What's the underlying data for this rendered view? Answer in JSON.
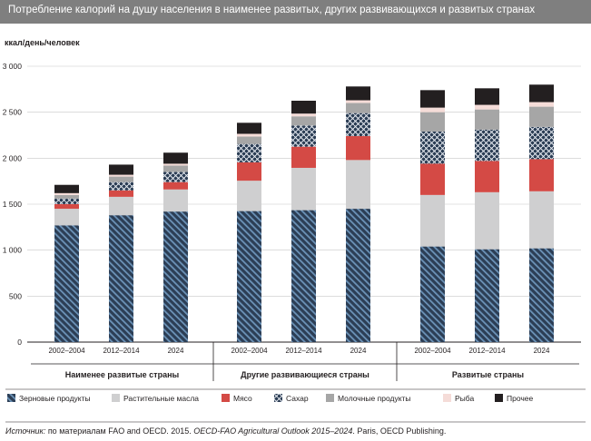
{
  "title": "Потребление калорий на душу населения в наименее развитых, других развивающихся и развитых странах",
  "source": {
    "lead": "Источник:",
    "text": " по материалам FAO and OECD. 2015. ",
    "publication": "OECD-FAO Agricultural Outlook 2015–2024",
    "tail": ". Paris, OECD Publishing."
  },
  "colors": {
    "cereals": "#2c3e55",
    "cereals_stripe": "#6c93b8",
    "oils": "#cfcfd0",
    "meat": "#d44a45",
    "sugar": "#2c3e55",
    "sugar_pattern": "#e8ecf2",
    "dairy": "#a6a6a6",
    "fish": "#f5dcd8",
    "other": "#231f20"
  },
  "chart_data": {
    "type": "bar",
    "stacked": true,
    "ylabel": "ккал/день/человек",
    "ylim": [
      0,
      3000
    ],
    "yticks": [
      0,
      500,
      1000,
      1500,
      2000,
      2500,
      3000
    ],
    "ytick_labels": [
      "0",
      "500",
      "1 000",
      "1 500",
      "2 000",
      "2 500",
      "3 000"
    ],
    "grid": true,
    "legend_position": "bottom",
    "groups": [
      {
        "label": "Наименее развитые страны",
        "categories": [
          "2002–2004",
          "2012–2014",
          "2024"
        ]
      },
      {
        "label": "Другие развивающиеся страны",
        "categories": [
          "2002–2004",
          "2012–2014",
          "2024"
        ]
      },
      {
        "label": "Развитые страны",
        "categories": [
          "2002–2004",
          "2012–2014",
          "2024"
        ]
      }
    ],
    "series": [
      {
        "name": "Зерновые продукты",
        "key": "cereals",
        "values": [
          1270,
          1380,
          1420,
          1425,
          1435,
          1450,
          1040,
          1010,
          1020
        ]
      },
      {
        "name": "Растительные масла",
        "key": "oils",
        "values": [
          180,
          200,
          240,
          330,
          460,
          530,
          560,
          620,
          620
        ]
      },
      {
        "name": "Мясо",
        "key": "meat",
        "values": [
          50,
          70,
          80,
          200,
          230,
          260,
          340,
          340,
          350
        ]
      },
      {
        "name": "Сахар",
        "key": "sugar",
        "values": [
          60,
          90,
          110,
          200,
          230,
          250,
          350,
          340,
          350
        ]
      },
      {
        "name": "Молочные продукты",
        "key": "dairy",
        "values": [
          40,
          60,
          70,
          80,
          100,
          110,
          210,
          220,
          220
        ]
      },
      {
        "name": "Рыба",
        "key": "fish",
        "values": [
          20,
          20,
          20,
          30,
          30,
          30,
          50,
          50,
          50
        ]
      },
      {
        "name": "Прочее",
        "key": "other",
        "values": [
          90,
          110,
          120,
          120,
          140,
          150,
          190,
          180,
          190
        ]
      }
    ]
  }
}
